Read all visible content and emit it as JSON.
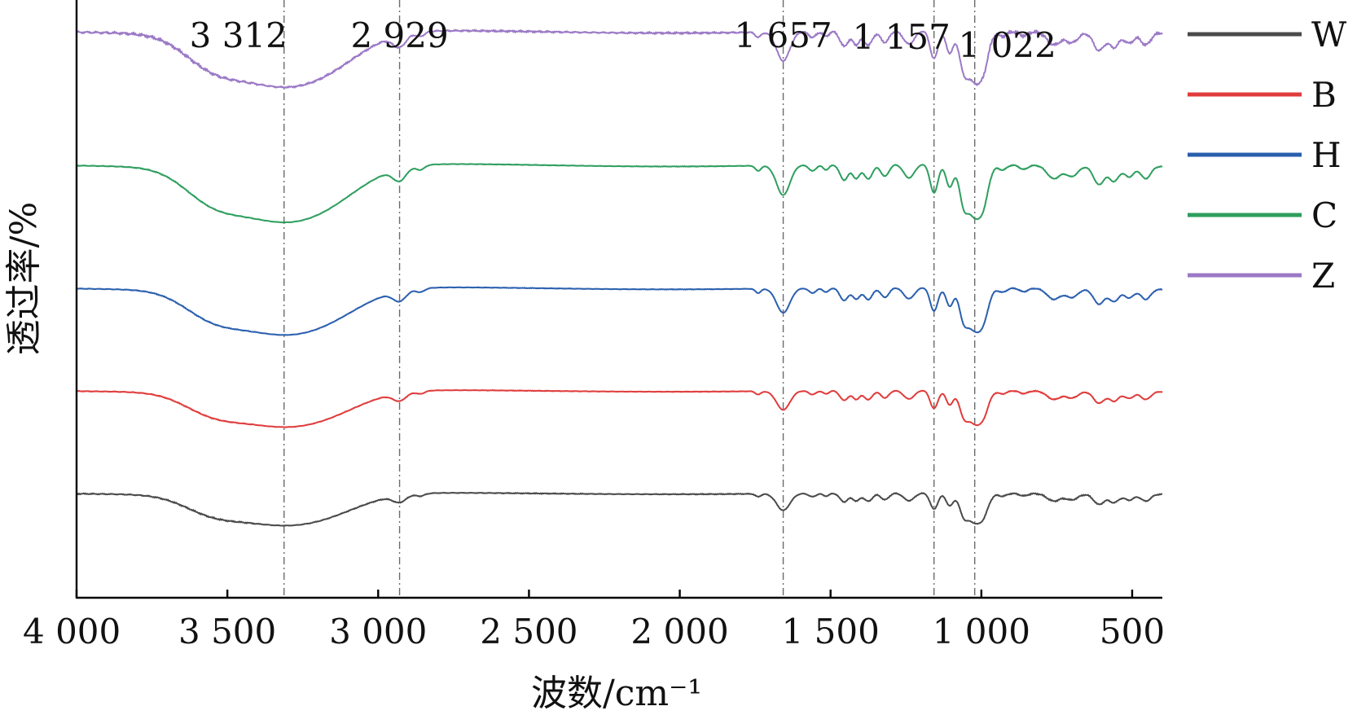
{
  "chart_data": {
    "type": "line",
    "title": "",
    "xlabel": "波数/cm⁻¹",
    "ylabel": "透过率/%",
    "xlim": [
      4000,
      400
    ],
    "x_reversed": true,
    "y_ticks_shown": false,
    "grid": false,
    "legend_position": "right",
    "x_ticks": [
      {
        "value": 4000,
        "label": "4 000"
      },
      {
        "value": 3500,
        "label": "3 500"
      },
      {
        "value": 3000,
        "label": "3 000"
      },
      {
        "value": 2500,
        "label": "2 500"
      },
      {
        "value": 2000,
        "label": "2 000"
      },
      {
        "value": 1500,
        "label": "1 500"
      },
      {
        "value": 1000,
        "label": "1 000"
      },
      {
        "value": 500,
        "label": "500"
      }
    ],
    "reference_lines": [
      {
        "x": 3312,
        "label": "3 312"
      },
      {
        "x": 2929,
        "label": "2 929"
      },
      {
        "x": 1657,
        "label": "1 657"
      },
      {
        "x": 1157,
        "label": "1 157"
      },
      {
        "x": 1022,
        "label": "1 022"
      }
    ],
    "series": [
      {
        "name": "W",
        "color": "#4a4a4a",
        "offset": 0.0,
        "absorbance_scale": 0.55,
        "noise": 0.006
      },
      {
        "name": "B",
        "color": "#e03c3c",
        "offset": 1.0,
        "absorbance_scale": 0.62,
        "noise": 0.004
      },
      {
        "name": "H",
        "color": "#2a5fae",
        "offset": 2.0,
        "absorbance_scale": 0.8,
        "noise": 0.004
      },
      {
        "name": "C",
        "color": "#2e9e5e",
        "offset": 3.2,
        "absorbance_scale": 0.98,
        "noise": 0.004
      },
      {
        "name": "Z",
        "color": "#9b79c6",
        "offset": 4.5,
        "absorbance_scale": 0.95,
        "noise": 0.014
      }
    ]
  }
}
